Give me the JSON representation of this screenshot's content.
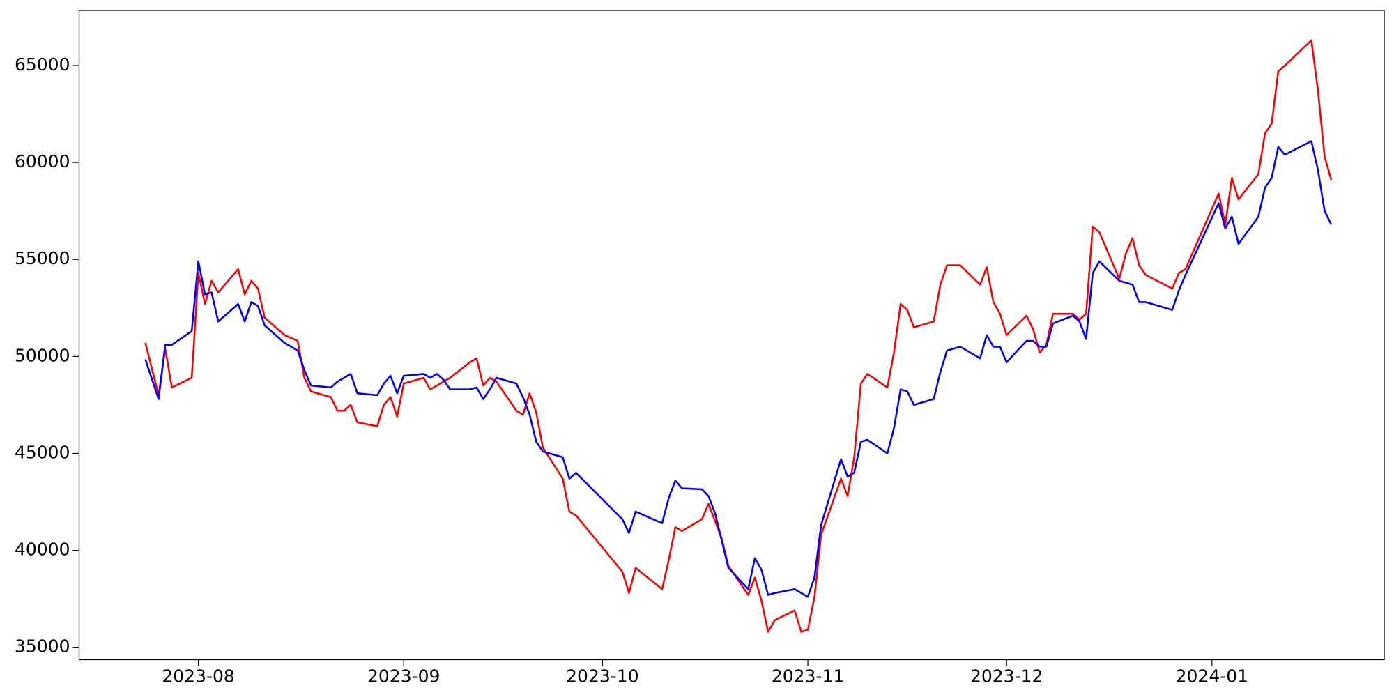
{
  "chart_data": {
    "type": "line",
    "x": [
      "2023-07-24",
      "2023-07-26",
      "2023-07-27",
      "2023-07-28",
      "2023-07-31",
      "2023-08-01",
      "2023-08-02",
      "2023-08-03",
      "2023-08-04",
      "2023-08-07",
      "2023-08-08",
      "2023-08-09",
      "2023-08-10",
      "2023-08-11",
      "2023-08-14",
      "2023-08-16",
      "2023-08-17",
      "2023-08-18",
      "2023-08-21",
      "2023-08-22",
      "2023-08-23",
      "2023-08-24",
      "2023-08-25",
      "2023-08-28",
      "2023-08-29",
      "2023-08-30",
      "2023-08-31",
      "2023-09-01",
      "2023-09-04",
      "2023-09-05",
      "2023-09-06",
      "2023-09-07",
      "2023-09-08",
      "2023-09-11",
      "2023-09-12",
      "2023-09-13",
      "2023-09-14",
      "2023-09-15",
      "2023-09-18",
      "2023-09-19",
      "2023-09-20",
      "2023-09-21",
      "2023-09-22",
      "2023-09-25",
      "2023-09-26",
      "2023-09-27",
      "2023-10-04",
      "2023-10-05",
      "2023-10-06",
      "2023-10-10",
      "2023-10-11",
      "2023-10-12",
      "2023-10-13",
      "2023-10-16",
      "2023-10-17",
      "2023-10-18",
      "2023-10-19",
      "2023-10-20",
      "2023-10-23",
      "2023-10-24",
      "2023-10-25",
      "2023-10-26",
      "2023-10-27",
      "2023-10-30",
      "2023-10-31",
      "2023-11-01",
      "2023-11-02",
      "2023-11-03",
      "2023-11-06",
      "2023-11-07",
      "2023-11-08",
      "2023-11-09",
      "2023-11-10",
      "2023-11-13",
      "2023-11-14",
      "2023-11-15",
      "2023-11-16",
      "2023-11-17",
      "2023-11-20",
      "2023-11-21",
      "2023-11-22",
      "2023-11-24",
      "2023-11-27",
      "2023-11-28",
      "2023-11-29",
      "2023-11-30",
      "2023-12-01",
      "2023-12-04",
      "2023-12-05",
      "2023-12-06",
      "2023-12-07",
      "2023-12-08",
      "2023-12-11",
      "2023-12-12",
      "2023-12-13",
      "2023-12-14",
      "2023-12-15",
      "2023-12-18",
      "2023-12-19",
      "2023-12-20",
      "2023-12-21",
      "2023-12-22",
      "2023-12-26",
      "2023-12-27",
      "2023-12-28",
      "2024-01-02",
      "2024-01-03",
      "2024-01-04",
      "2024-01-05",
      "2024-01-08",
      "2024-01-09",
      "2024-01-10",
      "2024-01-11",
      "2024-01-12",
      "2024-01-16",
      "2024-01-17",
      "2024-01-18",
      "2024-01-19"
    ],
    "series": [
      {
        "color": "red",
        "values": [
          50700,
          48000,
          50400,
          48400,
          48900,
          54300,
          52700,
          53900,
          53300,
          54500,
          53200,
          53900,
          53500,
          52000,
          51100,
          50800,
          48900,
          48200,
          47900,
          47200,
          47200,
          47500,
          46600,
          46400,
          47500,
          47900,
          46900,
          48600,
          48900,
          48300,
          48500,
          48700,
          48900,
          49700,
          49900,
          48500,
          48900,
          48700,
          47200,
          47000,
          48100,
          47100,
          45300,
          43700,
          42000,
          41800,
          38900,
          37800,
          39100,
          38000,
          39500,
          41200,
          41000,
          41600,
          42400,
          41500,
          40600,
          39200,
          37700,
          38600,
          37400,
          35800,
          36400,
          36900,
          35800,
          35900,
          37600,
          40800,
          43700,
          42800,
          44800,
          48600,
          49100,
          48400,
          50200,
          52700,
          52400,
          51500,
          51800,
          53700,
          54700,
          54700,
          53700,
          54600,
          52800,
          52200,
          51100,
          52100,
          51400,
          50200,
          50600,
          52200,
          52200,
          51900,
          52200,
          56700,
          56400,
          54000,
          55300,
          56100,
          54700,
          54200,
          53500,
          54300,
          54500,
          58400,
          56800,
          59200,
          58100,
          59400,
          61500,
          62000,
          64700,
          65000,
          66300,
          63700,
          60300,
          59100
        ]
      },
      {
        "color": "blue",
        "values": [
          49850,
          47800,
          50600,
          50600,
          51300,
          54900,
          53200,
          53300,
          51800,
          52700,
          51800,
          52800,
          52600,
          51600,
          50700,
          50300,
          49300,
          48500,
          48400,
          48700,
          48900,
          49100,
          48100,
          48000,
          48600,
          49000,
          48100,
          49000,
          49100,
          48900,
          49100,
          48800,
          48300,
          48300,
          48400,
          47800,
          48300,
          48900,
          48600,
          47900,
          47000,
          45600,
          45100,
          44800,
          43700,
          44000,
          41600,
          40900,
          42000,
          41400,
          42700,
          43600,
          43200,
          43150,
          42800,
          41900,
          40500,
          39100,
          38000,
          39600,
          39000,
          37700,
          37800,
          38000,
          37800,
          37600,
          38600,
          41300,
          44700,
          43800,
          44000,
          45600,
          45700,
          45000,
          46300,
          48300,
          48200,
          47500,
          47800,
          49200,
          50300,
          50500,
          49900,
          51100,
          50500,
          50500,
          49700,
          50800,
          50800,
          50500,
          50500,
          51700,
          52100,
          51800,
          50900,
          54300,
          54900,
          53900,
          53800,
          53700,
          52800,
          52800,
          52400,
          53400,
          54200,
          57900,
          56600,
          57200,
          55800,
          57200,
          58700,
          59200,
          60800,
          60400,
          61100,
          59600,
          57500,
          56800
        ]
      }
    ],
    "xlim": [
      "2023-07-14",
      "2024-01-27"
    ],
    "xticks": [
      {
        "value": "2023-08-01",
        "label": "2023-08"
      },
      {
        "value": "2023-09-01",
        "label": "2023-09"
      },
      {
        "value": "2023-10-01",
        "label": "2023-10"
      },
      {
        "value": "2023-11-01",
        "label": "2023-11"
      },
      {
        "value": "2023-12-01",
        "label": "2023-12"
      },
      {
        "value": "2024-01-01",
        "label": "2024-01"
      }
    ],
    "ylim": [
      34360,
      67840
    ],
    "yticks": [
      35000,
      40000,
      45000,
      50000,
      55000,
      60000,
      65000
    ],
    "grid": false
  }
}
